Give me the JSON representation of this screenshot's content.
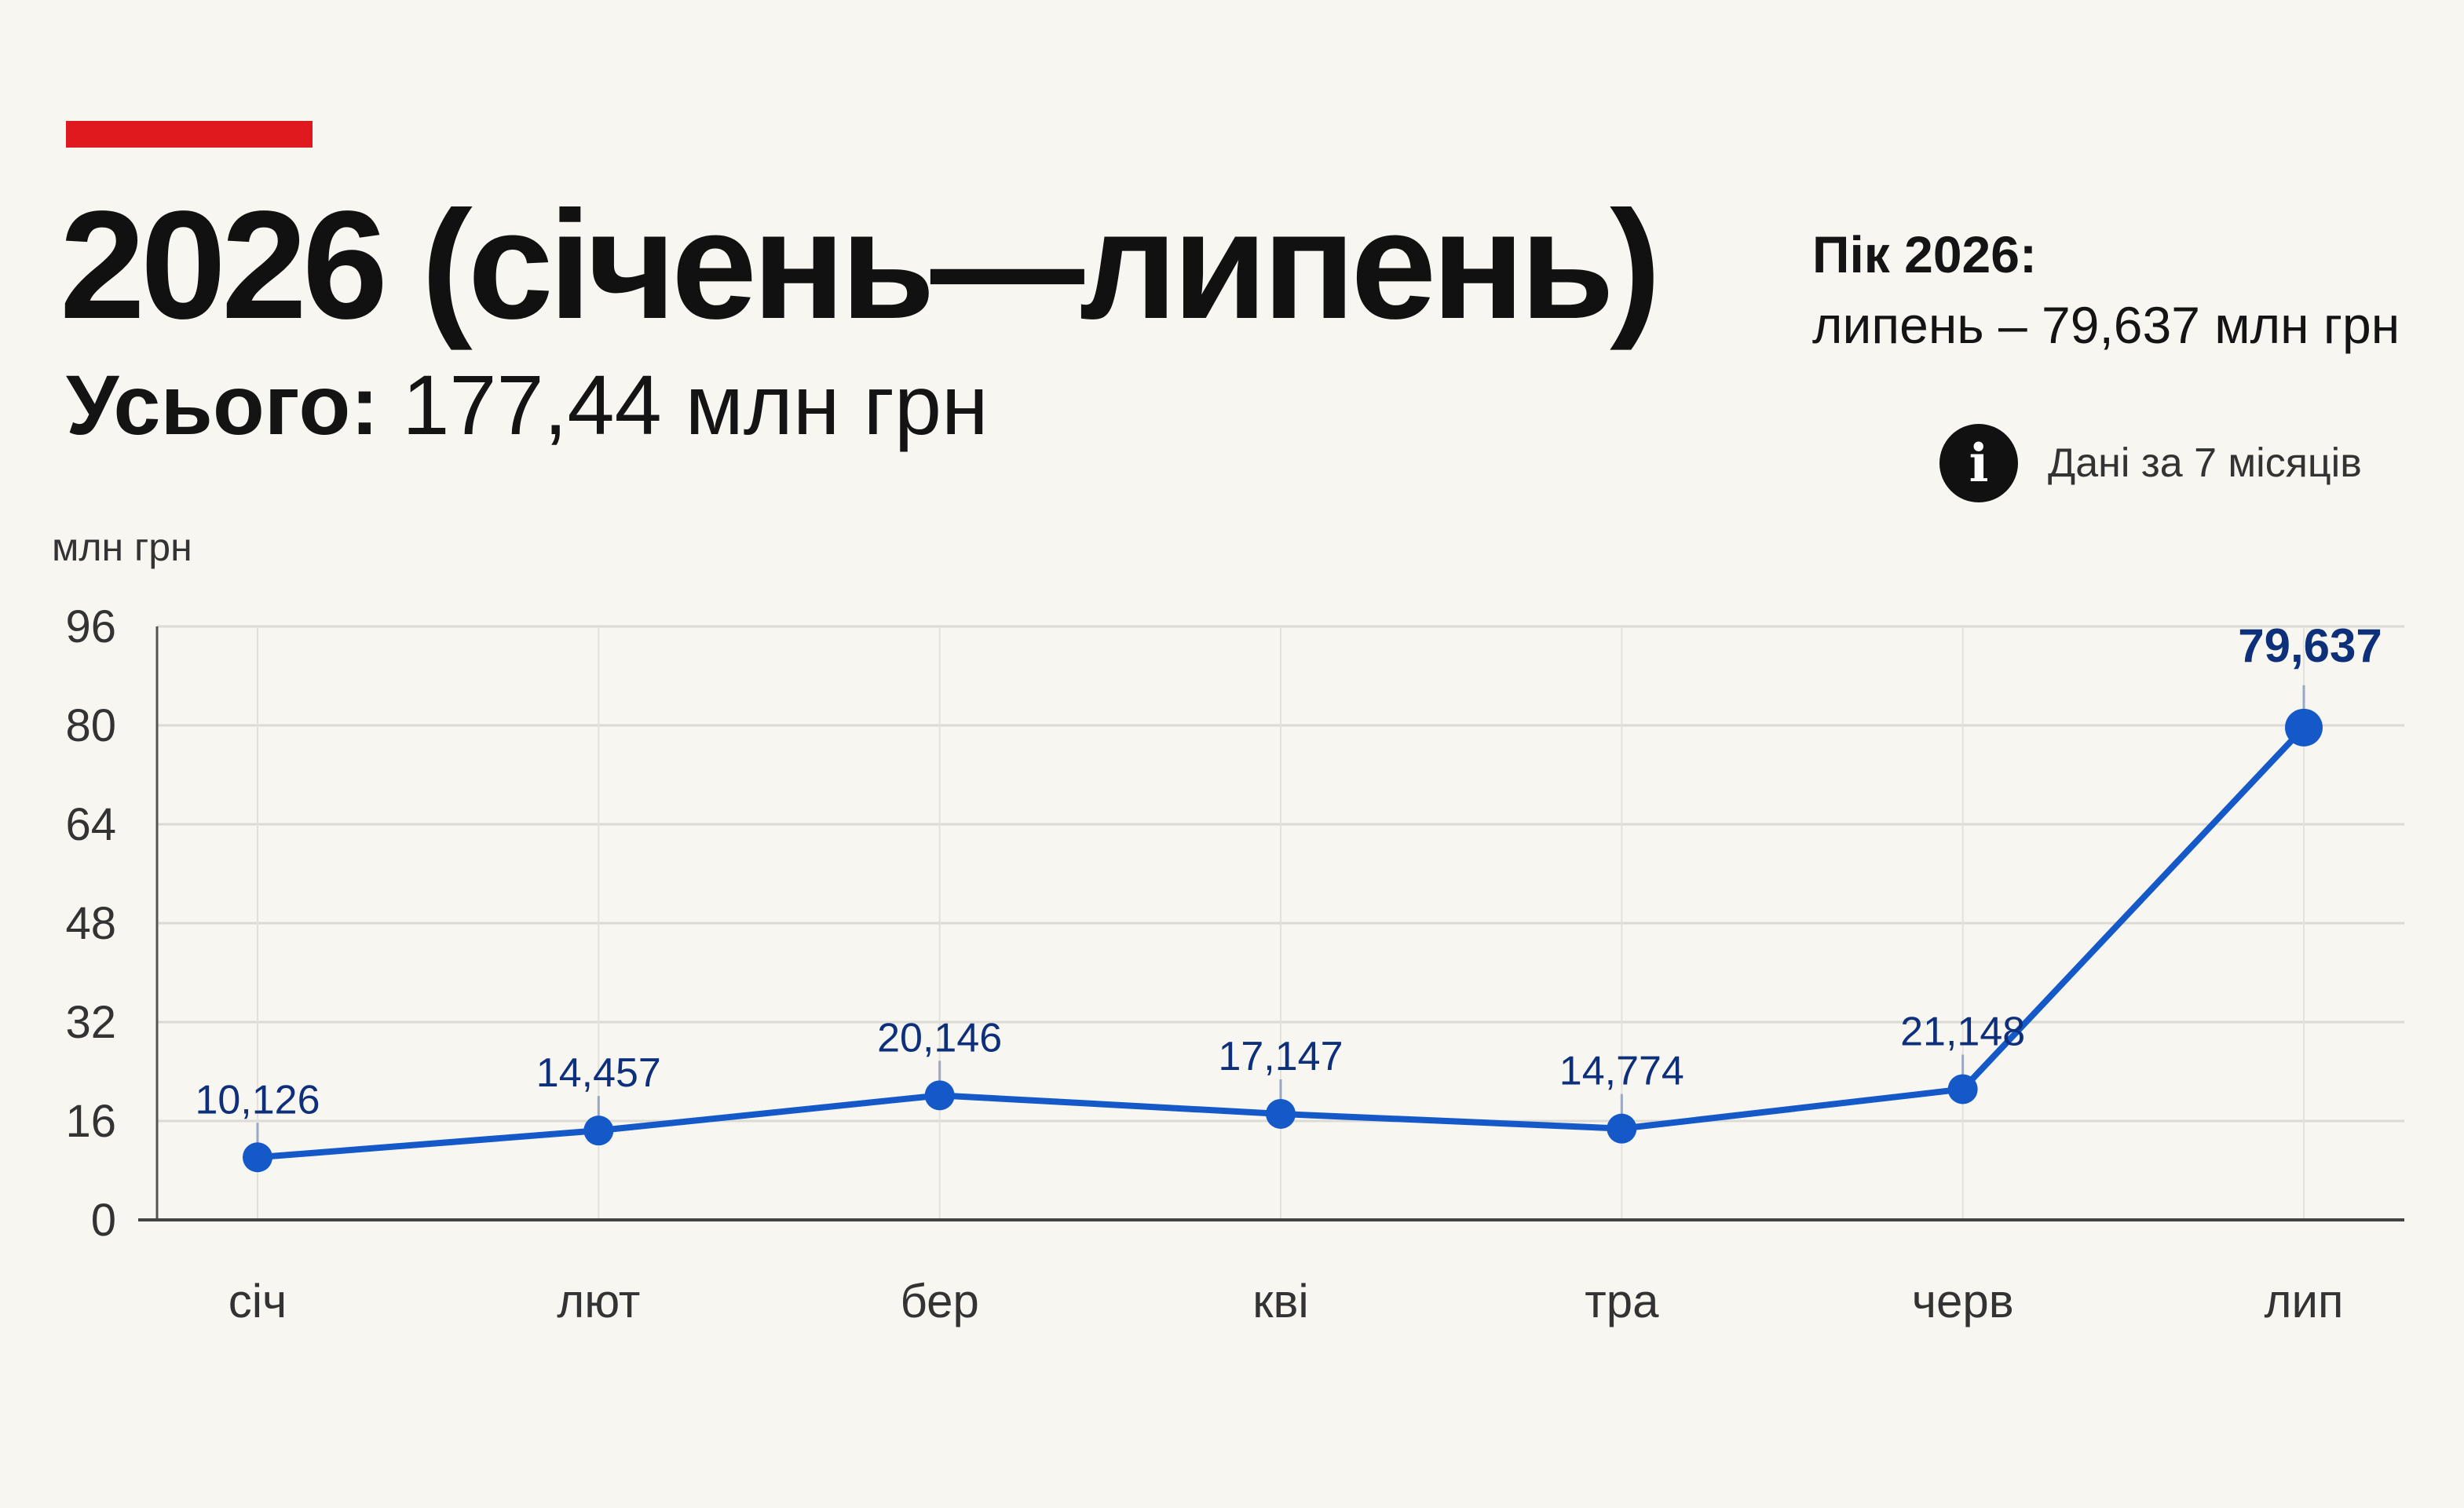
{
  "header": {
    "title": "2026 (січень—липень)",
    "subtitle_label": "Усього:",
    "subtitle_value": "177,44 млн грн",
    "peak_label": "Пік 2026:",
    "peak_value": "липень – 79,637 млн грн",
    "note_icon": "info-icon",
    "note_icon_glyph": "i",
    "note_text": "Дані за 7 місяців"
  },
  "colors": {
    "accent": "#e0191e",
    "line": "#1559c9",
    "labels": "#0e2f7a",
    "background": "#f7f6f1"
  },
  "chart_data": {
    "type": "line",
    "title": "2026 (січень—липень)",
    "ylabel": "млн грн",
    "xlabel": "",
    "categories": [
      "січ",
      "лют",
      "бер",
      "кві",
      "тра",
      "черв",
      "лип"
    ],
    "series": [
      {
        "values": [
          10.126,
          14.457,
          20.146,
          17.147,
          14.774,
          21.148,
          79.637
        ],
        "labels": [
          "10,126",
          "14,457",
          "20,146",
          "17,147",
          "14,774",
          "21,148",
          "79,637"
        ]
      }
    ],
    "ylim": [
      0,
      96
    ],
    "yticks": [
      0,
      16,
      32,
      48,
      64,
      80,
      96
    ],
    "grid": true,
    "legend": "none",
    "highlight_index": 6
  }
}
